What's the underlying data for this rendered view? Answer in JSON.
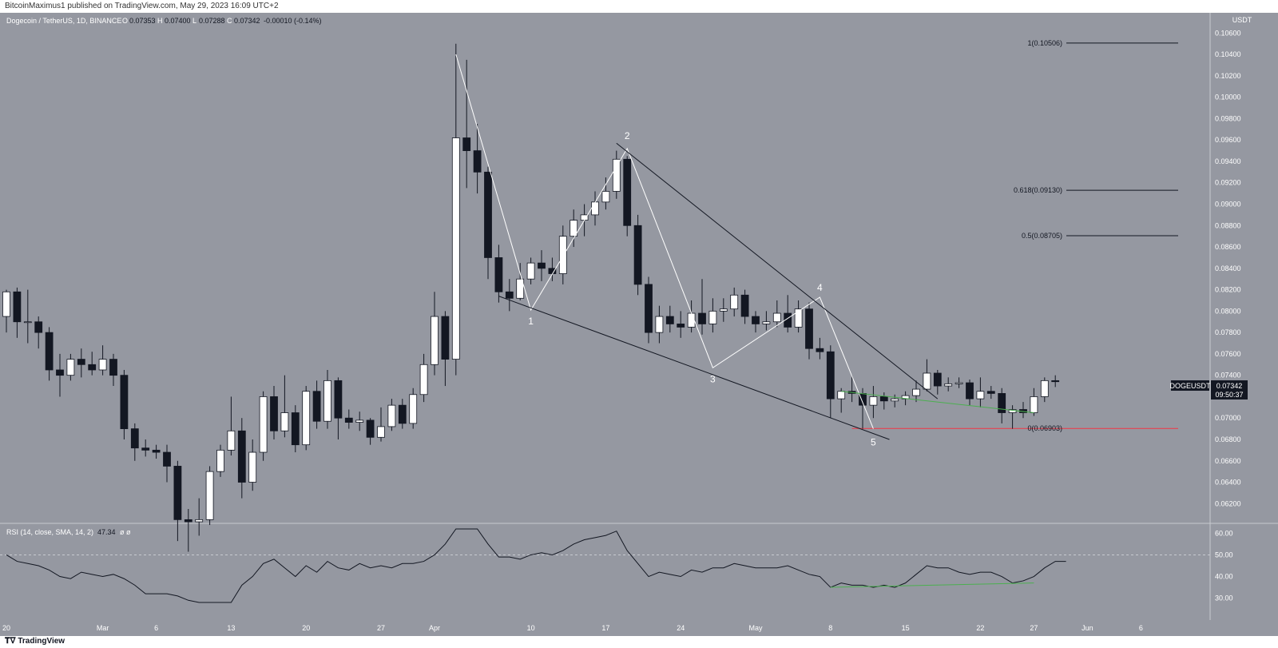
{
  "header": {
    "published": "BitcoinMaximus1 published on TradingView.com, May 29, 2023 16:09 UTC+2"
  },
  "footer": {
    "brand": "TradingView",
    "logo_icon": "tradingview-logo-icon"
  },
  "colors": {
    "background": "#9598a1",
    "up_candle": "#ffffff",
    "down_candle": "#131722",
    "support_line": "#f23645",
    "divergence_line": "#4caf50",
    "wave_line": "#ffffff",
    "wedge_line": "#131722",
    "last_price_tag": "#131722"
  },
  "legend": {
    "symbol": "Dogecoin / TetherUS, 1D, BINANCE",
    "open_label": "O",
    "open": "0.07353",
    "high_label": "H",
    "high": "0.07400",
    "low_label": "L",
    "low": "0.07288",
    "close_label": "C",
    "close": "0.07342",
    "change": "-0.00010 (-0.14%)"
  },
  "price_axis": {
    "currency": "USDT",
    "ticker": "DOGEUSDT",
    "last_price": "0.07342",
    "countdown": "09:50:37"
  },
  "rsi_legend": {
    "text": "RSI (14, close, SMA, 14, 2)",
    "value": "47.34",
    "extra": "ø ø"
  },
  "chart_data": [
    {
      "type": "candlestick",
      "title": "Dogecoin / TetherUS, 1D, BINANCE",
      "y_ticks": [
        "0.06200",
        "0.06400",
        "0.06600",
        "0.06800",
        "0.07000",
        "0.07200",
        "0.07400",
        "0.07600",
        "0.07800",
        "0.08000",
        "0.08200",
        "0.08400",
        "0.08600",
        "0.08800",
        "0.09000",
        "0.09200",
        "0.09400",
        "0.09600",
        "0.09800",
        "0.10000",
        "0.10200",
        "0.10400",
        "0.10600"
      ],
      "ylim": [
        0.0612,
        0.1064
      ],
      "x_ticks": [
        {
          "label": "20",
          "index": 0
        },
        {
          "label": "Mar",
          "index": 9
        },
        {
          "label": "6",
          "index": 14
        },
        {
          "label": "13",
          "index": 21
        },
        {
          "label": "20",
          "index": 28
        },
        {
          "label": "27",
          "index": 35
        },
        {
          "label": "Apr",
          "index": 40
        },
        {
          "label": "10",
          "index": 49
        },
        {
          "label": "17",
          "index": 56
        },
        {
          "label": "24",
          "index": 63
        },
        {
          "label": "May",
          "index": 70
        },
        {
          "label": "8",
          "index": 77
        },
        {
          "label": "15",
          "index": 84
        },
        {
          "label": "22",
          "index": 91
        },
        {
          "label": "27",
          "index": 96
        },
        {
          "label": "Jun",
          "index": 101
        },
        {
          "label": "6",
          "index": 106
        },
        {
          "label": "13",
          "index": 113
        }
      ],
      "candles": [
        [
          0.0795,
          0.0818,
          0.082,
          0.078
        ],
        [
          0.0818,
          0.079,
          0.0822,
          0.0775
        ],
        [
          0.079,
          0.079,
          0.082,
          0.077
        ],
        [
          0.079,
          0.078,
          0.0795,
          0.0765
        ],
        [
          0.078,
          0.0745,
          0.0785,
          0.0735
        ],
        [
          0.0745,
          0.074,
          0.076,
          0.072
        ],
        [
          0.074,
          0.0755,
          0.076,
          0.0735
        ],
        [
          0.0755,
          0.075,
          0.0765,
          0.0738
        ],
        [
          0.075,
          0.0745,
          0.0762,
          0.074
        ],
        [
          0.0745,
          0.0755,
          0.0768,
          0.074
        ],
        [
          0.0755,
          0.074,
          0.076,
          0.073
        ],
        [
          0.074,
          0.069,
          0.0745,
          0.068
        ],
        [
          0.069,
          0.0672,
          0.0695,
          0.066
        ],
        [
          0.0672,
          0.067,
          0.068,
          0.0664
        ],
        [
          0.067,
          0.0668,
          0.0675,
          0.0662
        ],
        [
          0.0668,
          0.0655,
          0.0675,
          0.064
        ],
        [
          0.0655,
          0.0605,
          0.066,
          0.0585
        ],
        [
          0.0605,
          0.0603,
          0.0615,
          0.0575
        ],
        [
          0.0603,
          0.0605,
          0.0625,
          0.059
        ],
        [
          0.0605,
          0.065,
          0.0655,
          0.06
        ],
        [
          0.065,
          0.067,
          0.0675,
          0.0645
        ],
        [
          0.067,
          0.0688,
          0.072,
          0.0665
        ],
        [
          0.0688,
          0.064,
          0.07,
          0.0625
        ],
        [
          0.064,
          0.0668,
          0.068,
          0.0632
        ],
        [
          0.0668,
          0.072,
          0.0725,
          0.066
        ],
        [
          0.072,
          0.0688,
          0.073,
          0.068
        ],
        [
          0.0688,
          0.0705,
          0.074,
          0.0682
        ],
        [
          0.0705,
          0.0675,
          0.0712,
          0.0668
        ],
        [
          0.0675,
          0.0725,
          0.073,
          0.067
        ],
        [
          0.0725,
          0.0697,
          0.0735,
          0.069
        ],
        [
          0.0697,
          0.0735,
          0.0745,
          0.069
        ],
        [
          0.0735,
          0.07,
          0.0738,
          0.068
        ],
        [
          0.07,
          0.0696,
          0.0708,
          0.069
        ],
        [
          0.0696,
          0.0698,
          0.0706,
          0.0688
        ],
        [
          0.0698,
          0.0682,
          0.07,
          0.0675
        ],
        [
          0.0682,
          0.0692,
          0.071,
          0.0678
        ],
        [
          0.0692,
          0.0712,
          0.0718,
          0.0688
        ],
        [
          0.0712,
          0.0695,
          0.0718,
          0.069
        ],
        [
          0.0695,
          0.0722,
          0.0728,
          0.069
        ],
        [
          0.0722,
          0.075,
          0.076,
          0.0715
        ],
        [
          0.075,
          0.0795,
          0.0818,
          0.074
        ],
        [
          0.0795,
          0.0755,
          0.08,
          0.073
        ],
        [
          0.0755,
          0.0962,
          0.105,
          0.074
        ],
        [
          0.0962,
          0.095,
          0.1035,
          0.0915
        ],
        [
          0.095,
          0.093,
          0.0975,
          0.091
        ],
        [
          0.093,
          0.085,
          0.0935,
          0.083
        ],
        [
          0.085,
          0.0818,
          0.0862,
          0.0808
        ],
        [
          0.0818,
          0.0812,
          0.083,
          0.08
        ],
        [
          0.0812,
          0.083,
          0.0845,
          0.081
        ],
        [
          0.083,
          0.0845,
          0.085,
          0.0825
        ],
        [
          0.0845,
          0.084,
          0.0857,
          0.0828
        ],
        [
          0.084,
          0.0835,
          0.085,
          0.0828
        ],
        [
          0.0835,
          0.087,
          0.088,
          0.0825
        ],
        [
          0.087,
          0.0885,
          0.0895,
          0.086
        ],
        [
          0.0885,
          0.089,
          0.09,
          0.087
        ],
        [
          0.089,
          0.0902,
          0.0912,
          0.088
        ],
        [
          0.0902,
          0.0912,
          0.0925,
          0.0895
        ],
        [
          0.0912,
          0.0942,
          0.095,
          0.0905
        ],
        [
          0.0942,
          0.088,
          0.0945,
          0.087
        ],
        [
          0.088,
          0.0825,
          0.089,
          0.0815
        ],
        [
          0.0825,
          0.078,
          0.0832,
          0.077
        ],
        [
          0.078,
          0.0795,
          0.0805,
          0.077
        ],
        [
          0.0795,
          0.0788,
          0.0805,
          0.078
        ],
        [
          0.0788,
          0.0785,
          0.08,
          0.0775
        ],
        [
          0.0785,
          0.0798,
          0.081,
          0.078
        ],
        [
          0.0798,
          0.0788,
          0.083,
          0.0778
        ],
        [
          0.0788,
          0.08,
          0.0812,
          0.078
        ],
        [
          0.08,
          0.0802,
          0.0812,
          0.079
        ],
        [
          0.0802,
          0.0815,
          0.0822,
          0.0795
        ],
        [
          0.0815,
          0.0795,
          0.082,
          0.0788
        ],
        [
          0.0795,
          0.0788,
          0.08,
          0.078
        ],
        [
          0.0788,
          0.079,
          0.08,
          0.0782
        ],
        [
          0.079,
          0.0798,
          0.081,
          0.0785
        ],
        [
          0.0798,
          0.0785,
          0.0815,
          0.078
        ],
        [
          0.0785,
          0.0802,
          0.081,
          0.078
        ],
        [
          0.0802,
          0.0765,
          0.0808,
          0.0755
        ],
        [
          0.0765,
          0.0762,
          0.0775,
          0.0755
        ],
        [
          0.0762,
          0.0718,
          0.0768,
          0.07
        ],
        [
          0.0718,
          0.0725,
          0.0728,
          0.0705
        ],
        [
          0.0725,
          0.0723,
          0.074,
          0.0715
        ],
        [
          0.0723,
          0.0712,
          0.0728,
          0.069
        ],
        [
          0.0712,
          0.072,
          0.073,
          0.07
        ],
        [
          0.072,
          0.0716,
          0.0724,
          0.0708
        ],
        [
          0.0716,
          0.0718,
          0.0722,
          0.071
        ],
        [
          0.0718,
          0.0721,
          0.0725,
          0.0712
        ],
        [
          0.0721,
          0.0727,
          0.0735,
          0.0715
        ],
        [
          0.0727,
          0.0742,
          0.0755,
          0.0725
        ],
        [
          0.0742,
          0.073,
          0.0745,
          0.0722
        ],
        [
          0.073,
          0.0732,
          0.0738,
          0.0725
        ],
        [
          0.0732,
          0.0733,
          0.0738,
          0.0728
        ],
        [
          0.0733,
          0.0718,
          0.0736,
          0.0712
        ],
        [
          0.0718,
          0.0725,
          0.0738,
          0.071
        ],
        [
          0.0725,
          0.0723,
          0.073,
          0.0718
        ],
        [
          0.0723,
          0.0705,
          0.0728,
          0.0695
        ],
        [
          0.0705,
          0.0708,
          0.0712,
          0.069
        ],
        [
          0.0708,
          0.0705,
          0.0715,
          0.07
        ],
        [
          0.0705,
          0.072,
          0.0728,
          0.0702
        ],
        [
          0.072,
          0.0735,
          0.0738,
          0.0715
        ],
        [
          0.0735,
          0.0734,
          0.074,
          0.0729
        ]
      ],
      "wave_labels": [
        {
          "label": "1",
          "index": 49,
          "price": 0.0801
        },
        {
          "label": "2",
          "index": 58,
          "price": 0.0955
        },
        {
          "label": "3",
          "index": 66,
          "price": 0.0747
        },
        {
          "label": "4",
          "index": 76,
          "price": 0.0813
        },
        {
          "label": "5",
          "index": 81,
          "price": 0.0688
        }
      ],
      "fib_levels": [
        {
          "label": "1(0.10506)",
          "value": 0.10506
        },
        {
          "label": "0.618(0.09130)",
          "value": 0.0913
        },
        {
          "label": "0.5(0.08705)",
          "value": 0.08705
        },
        {
          "label": "0(0.06903)",
          "value": 0.06903
        }
      ]
    },
    {
      "type": "line",
      "title": "RSI (14, close, SMA, 14, 2)",
      "y_ticks": [
        "30.00",
        "40.00",
        "50.00",
        "60.00"
      ],
      "ylim": [
        28,
        62
      ],
      "series": [
        {
          "values": [
            50,
            47,
            46,
            45,
            43,
            40,
            39,
            42,
            41,
            40,
            41,
            39,
            36,
            32,
            32,
            32,
            31,
            29,
            28,
            24,
            24,
            26,
            36,
            40,
            46,
            48,
            44,
            40,
            45,
            42,
            47,
            44,
            43,
            46,
            44,
            45,
            44,
            46,
            46,
            47,
            50,
            55,
            64,
            65,
            66,
            55,
            49,
            49,
            48,
            50,
            51,
            50,
            52,
            55,
            57,
            58,
            59,
            61,
            52,
            46,
            40,
            42,
            41,
            40,
            43,
            42,
            44,
            44,
            46,
            45,
            44,
            44,
            44,
            45,
            43,
            41,
            40,
            35,
            37,
            36,
            36,
            35,
            36,
            35,
            37,
            41,
            45,
            44,
            44,
            42,
            41,
            42,
            42,
            40,
            37,
            38,
            40,
            44,
            47,
            47
          ]
        }
      ]
    }
  ]
}
